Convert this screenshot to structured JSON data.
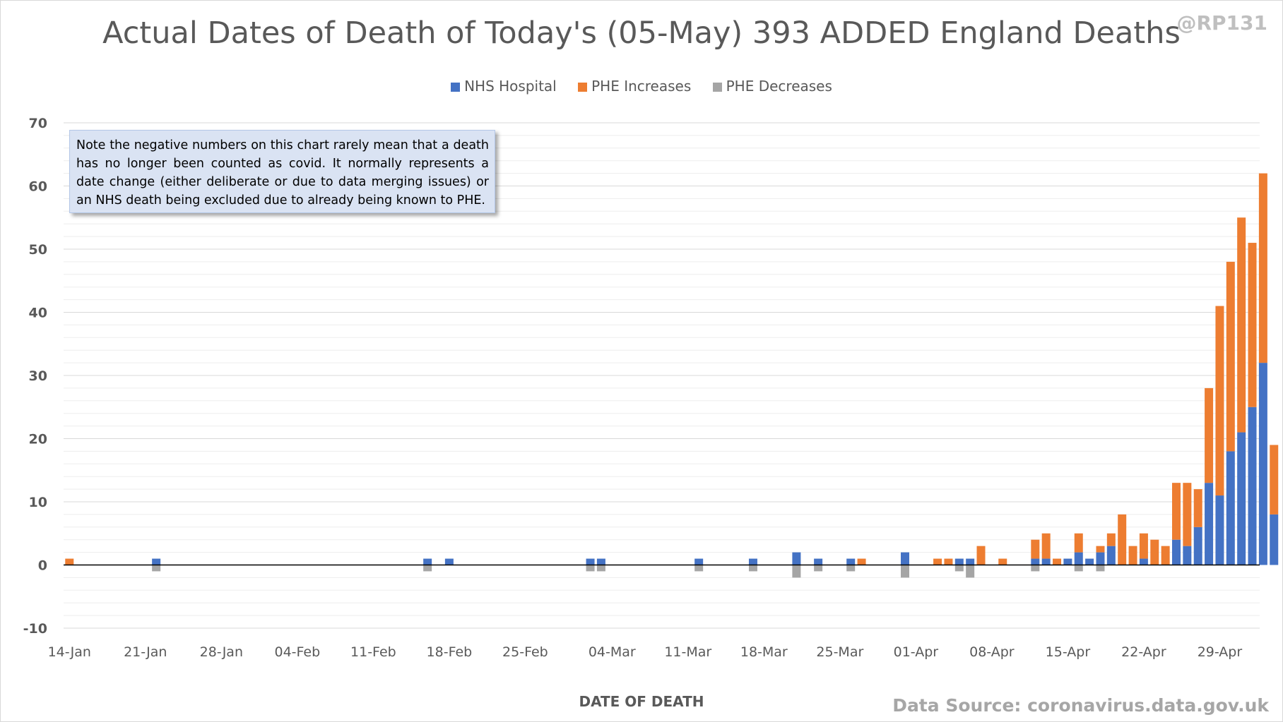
{
  "header": {
    "title": "Actual Dates of Death of Today's (05-May) 393 ADDED England Deaths",
    "handle": "@RP131"
  },
  "annotation": {
    "note": "Note the negative numbers on this chart rarely mean that a death has no longer been counted as covid. It normally represents a date change (either deliberate or due to data merging issues) or an NHS death being excluded due to already being known to PHE."
  },
  "footer": {
    "source": "Data Source: coronavirus.data.gov.uk"
  },
  "colors": {
    "nhs": "#4472c4",
    "phe_increases": "#ed7d31",
    "phe_decreases": "#a5a5a5",
    "gridline": "#d9d9d9",
    "axis_text": "#595959"
  },
  "chart_data": {
    "type": "bar",
    "stacked": true,
    "title": "Actual Dates of Death of Today's (05-May) 393 ADDED England Deaths",
    "xlabel": "DATE OF DEATH",
    "ylabel": "",
    "ylim": [
      -10,
      70
    ],
    "yticks": [
      -10,
      0,
      10,
      20,
      30,
      40,
      50,
      60,
      70
    ],
    "minor_gridlines_step": 2,
    "legend_position": "top",
    "categories": [
      "14-Jan",
      "15-Jan",
      "16-Jan",
      "17-Jan",
      "18-Jan",
      "19-Jan",
      "20-Jan",
      "21-Jan",
      "22-Jan",
      "23-Jan",
      "24-Jan",
      "25-Jan",
      "26-Jan",
      "27-Jan",
      "28-Jan",
      "29-Jan",
      "30-Jan",
      "31-Jan",
      "01-Feb",
      "02-Feb",
      "03-Feb",
      "04-Feb",
      "05-Feb",
      "06-Feb",
      "07-Feb",
      "08-Feb",
      "09-Feb",
      "10-Feb",
      "11-Feb",
      "12-Feb",
      "13-Feb",
      "14-Feb",
      "15-Feb",
      "16-Feb",
      "17-Feb",
      "18-Feb",
      "19-Feb",
      "20-Feb",
      "21-Feb",
      "22-Feb",
      "23-Feb",
      "24-Feb",
      "25-Feb",
      "26-Feb",
      "27-Feb",
      "28-Feb",
      "29-Feb",
      "01-Mar",
      "02-Mar",
      "03-Mar",
      "04-Mar",
      "05-Mar",
      "06-Mar",
      "07-Mar",
      "08-Mar",
      "09-Mar",
      "10-Mar",
      "11-Mar",
      "12-Mar",
      "13-Mar",
      "14-Mar",
      "15-Mar",
      "16-Mar",
      "17-Mar",
      "18-Mar",
      "19-Mar",
      "20-Mar",
      "21-Mar",
      "22-Mar",
      "23-Mar",
      "24-Mar",
      "25-Mar",
      "26-Mar",
      "27-Mar",
      "28-Mar",
      "29-Mar",
      "30-Mar",
      "31-Mar",
      "01-Apr",
      "02-Apr",
      "03-Apr",
      "04-Apr",
      "05-Apr",
      "06-Apr",
      "07-Apr",
      "08-Apr",
      "09-Apr",
      "10-Apr",
      "11-Apr",
      "12-Apr",
      "13-Apr",
      "14-Apr",
      "15-Apr",
      "16-Apr",
      "17-Apr",
      "18-Apr",
      "19-Apr",
      "20-Apr",
      "21-Apr",
      "22-Apr",
      "23-Apr",
      "24-Apr",
      "25-Apr",
      "26-Apr",
      "27-Apr",
      "28-Apr",
      "29-Apr",
      "30-Apr",
      "01-May",
      "02-May",
      "03-May",
      "04-May"
    ],
    "tick_labels": [
      "14-Jan",
      "21-Jan",
      "28-Jan",
      "04-Feb",
      "11-Feb",
      "18-Feb",
      "25-Feb",
      "04-Mar",
      "11-Mar",
      "18-Mar",
      "25-Mar",
      "01-Apr",
      "08-Apr",
      "15-Apr",
      "22-Apr",
      "29-Apr"
    ],
    "series": [
      {
        "name": "NHS Hospital",
        "color": "#4472c4",
        "values": [
          0,
          0,
          0,
          0,
          0,
          0,
          0,
          0,
          1,
          0,
          0,
          0,
          0,
          0,
          0,
          0,
          0,
          0,
          0,
          0,
          0,
          0,
          0,
          0,
          0,
          0,
          0,
          0,
          0,
          0,
          0,
          0,
          0,
          1,
          0,
          1,
          0,
          0,
          0,
          0,
          0,
          0,
          0,
          0,
          0,
          0,
          0,
          0,
          1,
          1,
          0,
          0,
          0,
          0,
          0,
          0,
          0,
          0,
          1,
          0,
          0,
          0,
          0,
          1,
          0,
          0,
          0,
          2,
          0,
          1,
          0,
          0,
          1,
          0,
          0,
          0,
          0,
          2,
          0,
          0,
          0,
          0,
          1,
          1,
          0,
          0,
          0,
          0,
          0,
          1,
          1,
          0,
          1,
          2,
          1,
          2,
          3,
          0,
          0,
          1,
          0,
          0,
          4,
          3,
          6,
          13,
          11,
          18,
          21,
          25,
          32,
          8
        ]
      },
      {
        "name": "PHE Increases",
        "color": "#ed7d31",
        "values": [
          1,
          0,
          0,
          0,
          0,
          0,
          0,
          0,
          0,
          0,
          0,
          0,
          0,
          0,
          0,
          0,
          0,
          0,
          0,
          0,
          0,
          0,
          0,
          0,
          0,
          0,
          0,
          0,
          0,
          0,
          0,
          0,
          0,
          0,
          0,
          0,
          0,
          0,
          0,
          0,
          0,
          0,
          0,
          0,
          0,
          0,
          0,
          0,
          0,
          0,
          0,
          0,
          0,
          0,
          0,
          0,
          0,
          0,
          0,
          0,
          0,
          0,
          0,
          0,
          0,
          0,
          0,
          0,
          0,
          0,
          0,
          0,
          0,
          1,
          0,
          0,
          0,
          0,
          0,
          0,
          1,
          1,
          0,
          0,
          3,
          0,
          1,
          0,
          0,
          3,
          4,
          1,
          0,
          3,
          0,
          1,
          2,
          8,
          3,
          4,
          4,
          3,
          9,
          10,
          6,
          15,
          30,
          30,
          34,
          26,
          30,
          11
        ]
      },
      {
        "name": "PHE Decreases",
        "color": "#a5a5a5",
        "values": [
          0,
          0,
          0,
          0,
          0,
          0,
          0,
          0,
          -1,
          0,
          0,
          0,
          0,
          0,
          0,
          0,
          0,
          0,
          0,
          0,
          0,
          0,
          0,
          0,
          0,
          0,
          0,
          0,
          0,
          0,
          0,
          0,
          0,
          -1,
          0,
          0,
          0,
          0,
          0,
          0,
          0,
          0,
          0,
          0,
          0,
          0,
          0,
          0,
          -1,
          -1,
          0,
          0,
          0,
          0,
          0,
          0,
          0,
          0,
          -1,
          0,
          0,
          0,
          0,
          -1,
          0,
          0,
          0,
          -2,
          0,
          -1,
          0,
          0,
          -1,
          0,
          0,
          0,
          0,
          -2,
          0,
          0,
          0,
          0,
          -1,
          -2,
          0,
          0,
          0,
          0,
          0,
          -1,
          0,
          0,
          0,
          -1,
          0,
          -1,
          0,
          0,
          0,
          0,
          0,
          0,
          0,
          0,
          0,
          0,
          0,
          0,
          0,
          0,
          0,
          0
        ]
      }
    ]
  }
}
